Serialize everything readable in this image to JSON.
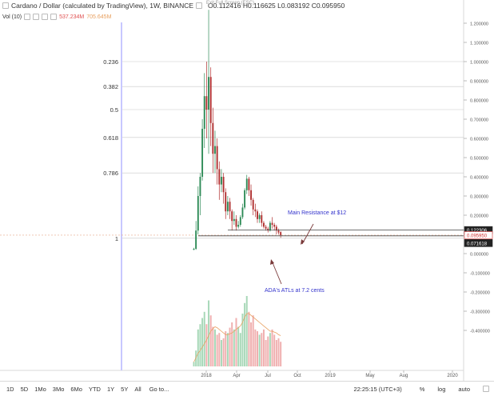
{
  "header": {
    "symbol_title": "Cardano / Dollar (calculated by TradingView), 1W, BINANCE",
    "ohlc": "O0.112416  H0.116625  L0.083192  C0.095950",
    "exit_fullscreen": "Exit Full Screen (ESC)"
  },
  "volume": {
    "label": "Vol (10)",
    "value1": "537.234M",
    "value2": "705.645M",
    "color1": "#e05050",
    "color2": "#e8a060"
  },
  "colors": {
    "up": "#2e8b57",
    "down": "#b03030",
    "fib_line": "#c8c8c8",
    "current_price_line": "#e8a888",
    "annotation_text": "#3333cc",
    "arrow": "#7a3a3a",
    "highlight": "#c8c8ff"
  },
  "chart_data": {
    "type": "candlestick",
    "right_axis_labels": [
      "1.200000",
      "1.100000",
      "1.000000",
      "0.900000",
      "0.800000",
      "0.700000",
      "0.600000",
      "0.500000",
      "0.400000",
      "0.300000",
      "0.200000",
      "0.100000",
      "0.000000",
      "-0.100000",
      "-0.200000",
      "-0.300000",
      "-0.400000"
    ],
    "right_axis_values": [
      1.2,
      1.1,
      1.0,
      0.9,
      0.8,
      0.7,
      0.6,
      0.5,
      0.4,
      0.3,
      0.2,
      0.1,
      0.0,
      -0.1,
      -0.2,
      -0.3,
      -0.4
    ],
    "price_tags": [
      {
        "label": "0.122306",
        "value": 0.122306,
        "style": "dark"
      },
      {
        "label": "0.095950",
        "value": 0.09595,
        "style": "red"
      },
      {
        "label": "0.071618",
        "value": 0.071618,
        "style": "dark"
      }
    ],
    "fib_levels": [
      {
        "label": "0.236",
        "value": 1.0
      },
      {
        "label": "0.382",
        "value": 0.87
      },
      {
        "label": "0.5",
        "value": 0.75
      },
      {
        "label": "0.618",
        "value": 0.605
      },
      {
        "label": "0.786",
        "value": 0.42
      },
      {
        "label": "1",
        "value": 0.08
      }
    ],
    "x_tick_labels": [
      "2018",
      "Apr",
      "Jul",
      "Oct",
      "2019",
      "May",
      "Aug",
      "2020"
    ],
    "annotations": [
      {
        "text": "Main Resistance at $12"
      },
      {
        "text": "ADA's ATLs at 7.2 cents"
      }
    ],
    "candles": [
      {
        "o": 0.02,
        "h": 0.03,
        "c": 0.025,
        "l": 0.018
      },
      {
        "o": 0.025,
        "h": 0.17,
        "c": 0.12,
        "l": 0.02
      },
      {
        "o": 0.12,
        "h": 0.35,
        "c": 0.3,
        "l": 0.1
      },
      {
        "o": 0.3,
        "h": 0.42,
        "c": 0.4,
        "l": 0.2
      },
      {
        "o": 0.4,
        "h": 0.7,
        "c": 0.65,
        "l": 0.38
      },
      {
        "o": 0.65,
        "h": 0.94,
        "c": 0.82,
        "l": 0.55
      },
      {
        "o": 0.82,
        "h": 1.0,
        "c": 0.75,
        "l": 0.6
      },
      {
        "o": 0.75,
        "h": 1.27,
        "c": 0.92,
        "l": 0.52
      },
      {
        "o": 0.92,
        "h": 0.97,
        "c": 0.68,
        "l": 0.56
      },
      {
        "o": 0.68,
        "h": 0.76,
        "c": 0.52,
        "l": 0.42
      },
      {
        "o": 0.52,
        "h": 0.64,
        "c": 0.56,
        "l": 0.42
      },
      {
        "o": 0.56,
        "h": 0.6,
        "c": 0.44,
        "l": 0.36
      },
      {
        "o": 0.44,
        "h": 0.48,
        "c": 0.36,
        "l": 0.28
      },
      {
        "o": 0.36,
        "h": 0.44,
        "c": 0.4,
        "l": 0.32
      },
      {
        "o": 0.4,
        "h": 0.42,
        "c": 0.32,
        "l": 0.26
      },
      {
        "o": 0.32,
        "h": 0.34,
        "c": 0.22,
        "l": 0.18
      },
      {
        "o": 0.22,
        "h": 0.3,
        "c": 0.27,
        "l": 0.2
      },
      {
        "o": 0.27,
        "h": 0.29,
        "c": 0.22,
        "l": 0.18
      },
      {
        "o": 0.22,
        "h": 0.23,
        "c": 0.17,
        "l": 0.12
      },
      {
        "o": 0.17,
        "h": 0.22,
        "c": 0.18,
        "l": 0.15
      },
      {
        "o": 0.18,
        "h": 0.2,
        "c": 0.14,
        "l": 0.12
      },
      {
        "o": 0.14,
        "h": 0.17,
        "c": 0.15,
        "l": 0.13
      },
      {
        "o": 0.15,
        "h": 0.2,
        "c": 0.19,
        "l": 0.14
      },
      {
        "o": 0.19,
        "h": 0.26,
        "c": 0.24,
        "l": 0.18
      },
      {
        "o": 0.24,
        "h": 0.34,
        "c": 0.33,
        "l": 0.23
      },
      {
        "o": 0.33,
        "h": 0.41,
        "c": 0.39,
        "l": 0.31
      },
      {
        "o": 0.39,
        "h": 0.4,
        "c": 0.33,
        "l": 0.3
      },
      {
        "o": 0.33,
        "h": 0.36,
        "c": 0.28,
        "l": 0.25
      },
      {
        "o": 0.28,
        "h": 0.29,
        "c": 0.23,
        "l": 0.2
      },
      {
        "o": 0.23,
        "h": 0.26,
        "c": 0.22,
        "l": 0.19
      },
      {
        "o": 0.22,
        "h": 0.23,
        "c": 0.18,
        "l": 0.16
      },
      {
        "o": 0.18,
        "h": 0.21,
        "c": 0.2,
        "l": 0.16
      },
      {
        "o": 0.2,
        "h": 0.22,
        "c": 0.16,
        "l": 0.14
      },
      {
        "o": 0.16,
        "h": 0.17,
        "c": 0.14,
        "l": 0.13
      },
      {
        "o": 0.14,
        "h": 0.15,
        "c": 0.13,
        "l": 0.12
      },
      {
        "o": 0.13,
        "h": 0.14,
        "c": 0.12,
        "l": 0.11
      },
      {
        "o": 0.12,
        "h": 0.17,
        "c": 0.16,
        "l": 0.115
      },
      {
        "o": 0.16,
        "h": 0.19,
        "c": 0.15,
        "l": 0.13
      },
      {
        "o": 0.15,
        "h": 0.16,
        "c": 0.14,
        "l": 0.12
      },
      {
        "o": 0.14,
        "h": 0.15,
        "c": 0.12,
        "l": 0.1
      },
      {
        "o": 0.12,
        "h": 0.13,
        "c": 0.11,
        "l": 0.1
      },
      {
        "o": 0.112,
        "h": 0.117,
        "c": 0.096,
        "l": 0.083
      }
    ],
    "volume_max": 1,
    "volume": [
      0.05,
      0.18,
      0.42,
      0.48,
      0.55,
      0.62,
      0.48,
      0.75,
      0.58,
      0.45,
      0.42,
      0.36,
      0.38,
      0.3,
      0.32,
      0.4,
      0.38,
      0.44,
      0.5,
      0.42,
      0.55,
      0.45,
      0.38,
      0.6,
      0.72,
      0.8,
      0.62,
      0.5,
      0.58,
      0.42,
      0.4,
      0.36,
      0.38,
      0.42,
      0.3,
      0.34,
      0.38,
      0.42,
      0.36,
      0.3,
      0.32,
      0.28
    ],
    "volume_ma": [
      0.05,
      0.1,
      0.15,
      0.18,
      0.22,
      0.26,
      0.3,
      0.35,
      0.4,
      0.43,
      0.45,
      0.44,
      0.42,
      0.4,
      0.38,
      0.36,
      0.36,
      0.37,
      0.38,
      0.4,
      0.42,
      0.44,
      0.46,
      0.5,
      0.56,
      0.6,
      0.6,
      0.58,
      0.56,
      0.54,
      0.52,
      0.5,
      0.48,
      0.46,
      0.44,
      0.42,
      0.4,
      0.4,
      0.39,
      0.38,
      0.36,
      0.35
    ]
  },
  "bottombar": {
    "ranges": [
      "1D",
      "5D",
      "1Mo",
      "3Mo",
      "6Mo",
      "YTD",
      "1Y",
      "5Y",
      "All"
    ],
    "goto": "Go to...",
    "time": "22:25:15 (UTC+3)",
    "percent": "%",
    "log": "log",
    "auto": "auto"
  }
}
